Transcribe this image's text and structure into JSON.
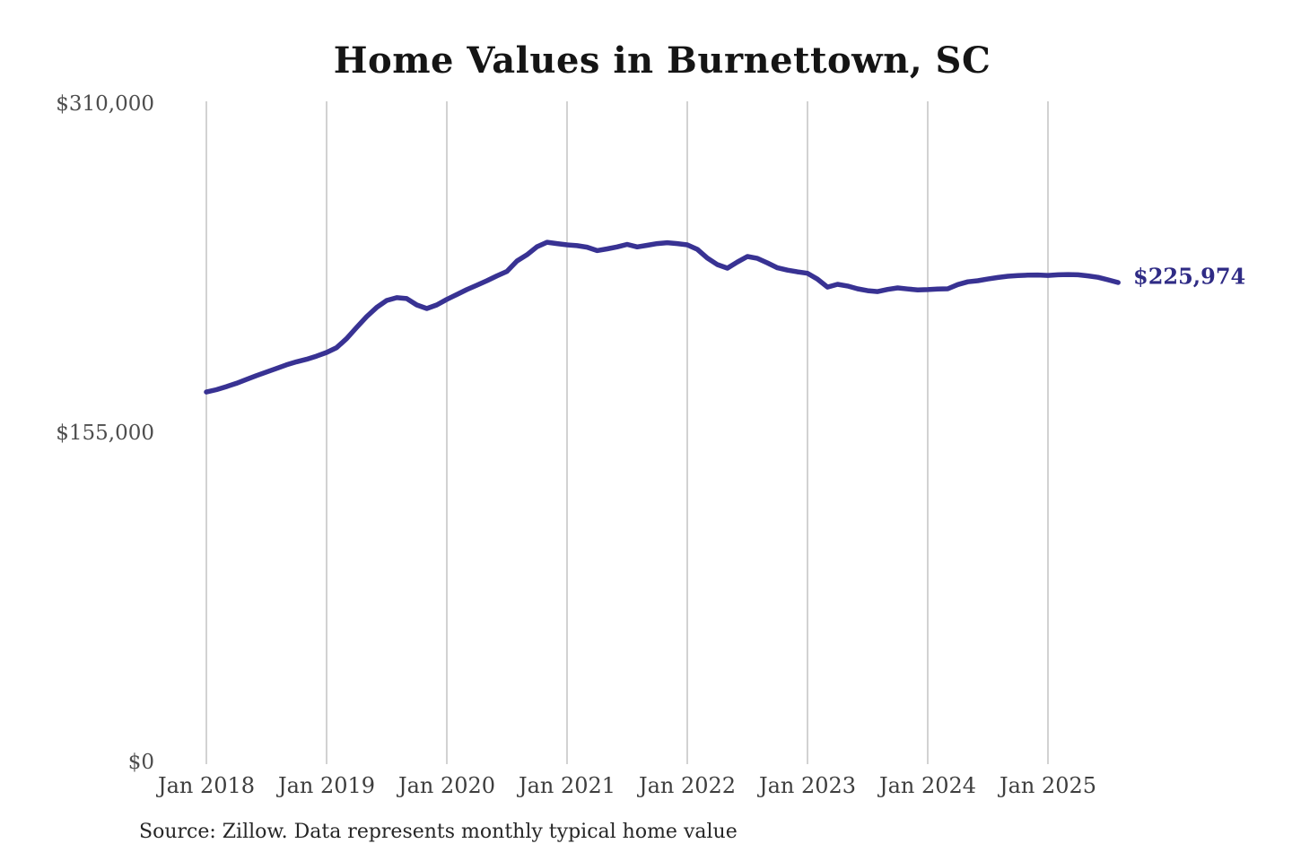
{
  "colors": {
    "background": "#ffffff",
    "line": "#383293",
    "end_label": "#2f2b85",
    "gridline": "#cbcbcb",
    "title": "#151515",
    "y_tick_label": "#4d4d4d",
    "x_tick_label": "#3e3e3e",
    "source_text": "#262626"
  },
  "chart_data": {
    "type": "line",
    "title": "Home Values in Burnettown, SC",
    "source": "Source: Zillow. Data represents monthly typical home value",
    "xlabel": "",
    "ylabel": "",
    "ylim": [
      0,
      310000
    ],
    "grid": "vertical-only",
    "legend": "none",
    "x_tick_labels": [
      "Jan 2018",
      "Jan 2019",
      "Jan 2020",
      "Jan 2021",
      "Jan 2022",
      "Jan 2023",
      "Jan 2024",
      "Jan 2025"
    ],
    "y_ticks": [
      {
        "label": "$0",
        "value": 0
      },
      {
        "label": "$155,000",
        "value": 155000
      },
      {
        "label": "$310,000",
        "value": 310000
      }
    ],
    "end_value": 225974,
    "end_value_label": "$225,974",
    "series": [
      {
        "name": "Monthly typical home value",
        "frequency": "monthly",
        "start": "Jan 2018",
        "end": "Aug 2025",
        "values": [
          174400,
          175500,
          176900,
          178500,
          180300,
          182100,
          183800,
          185500,
          187200,
          188600,
          189800,
          191300,
          193000,
          195300,
          199500,
          204800,
          209900,
          214200,
          217500,
          218800,
          218400,
          215400,
          213700,
          215400,
          218000,
          220300,
          222600,
          224700,
          226800,
          229100,
          231200,
          236100,
          239000,
          242800,
          244900,
          244300,
          243700,
          243300,
          242600,
          241000,
          241800,
          242700,
          243900,
          242700,
          243500,
          244300,
          244700,
          244300,
          243700,
          241600,
          237500,
          234400,
          232700,
          235600,
          238200,
          237300,
          235200,
          232900,
          231800,
          231000,
          230300,
          227500,
          223800,
          225100,
          224300,
          223000,
          222100,
          221700,
          222700,
          223400,
          222900,
          222500,
          222600,
          222900,
          223000,
          225000,
          226300,
          226800,
          227600,
          228300,
          228900,
          229200,
          229400,
          229500,
          229300,
          229600,
          229700,
          229600,
          229100,
          228400,
          227200,
          225974
        ]
      }
    ]
  }
}
